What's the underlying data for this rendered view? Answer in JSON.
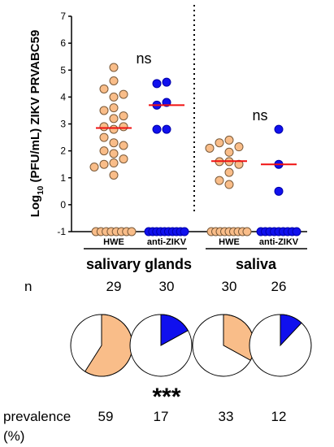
{
  "chart_data": {
    "type": "scatter",
    "ylabel_prefix": "Log",
    "ylabel_subscript": "10",
    "ylabel_rest": "(PFU/mL)  ZIKV PRVABC59",
    "yticks": [
      "-1",
      "0",
      "1",
      "2",
      "3",
      "4",
      "5",
      "6",
      "7"
    ],
    "ylim": [
      -1,
      7
    ],
    "groups": [
      {
        "label": "HWE",
        "tissue": "salivary glands",
        "color": "#F9BD89",
        "median": 2.85,
        "points": [
          5.1,
          4.6,
          4.3,
          4.0,
          4.1,
          3.6,
          3.5,
          3.3,
          3.2,
          2.9,
          2.9,
          2.8,
          2.5,
          2.3,
          2.2,
          2.0,
          1.9,
          1.7,
          1.55,
          1.5,
          1.4,
          1.1
        ],
        "zero_count": 8
      },
      {
        "label": "anti-ZIKV",
        "tissue": "salivary glands",
        "color": "#1010EE",
        "median": 3.7,
        "points": [
          4.55,
          4.5,
          3.8,
          3.7,
          2.8,
          2.8
        ],
        "zero_count": 10
      },
      {
        "label": "HWE",
        "tissue": "saliva",
        "color": "#F9BD89",
        "median": 1.62,
        "points": [
          2.4,
          2.3,
          2.15,
          2.1,
          1.95,
          1.6,
          1.6,
          1.5,
          1.2,
          0.9,
          0.75
        ],
        "zero_count": 9
      },
      {
        "label": "anti-ZIKV",
        "tissue": "saliva",
        "color": "#1010EE",
        "median": 1.5,
        "points": [
          2.8,
          1.5,
          0.5
        ],
        "zero_count": 9
      }
    ],
    "annotations": {
      "sig_left": "ns",
      "sig_right": "ns",
      "tissue_left": "salivary glands",
      "tissue_right": "saliva",
      "n_label": "n",
      "n_values": [
        "29",
        "30",
        "30",
        "26"
      ],
      "prevalence_label": "prevalence",
      "prevalence_unit": "(%)",
      "prevalence_values": [
        "59",
        "17",
        "33",
        "12"
      ],
      "pie_fractions": [
        0.59,
        0.17,
        0.33,
        0.12
      ],
      "sig_pie": "***"
    }
  }
}
